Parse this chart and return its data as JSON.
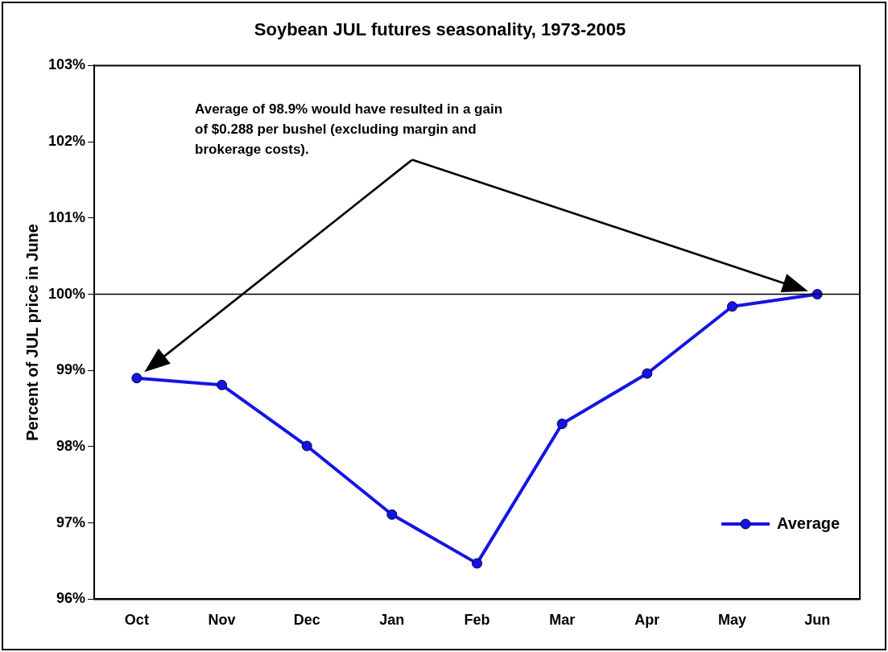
{
  "chart_data": {
    "type": "line",
    "title": "Soybean JUL futures seasonality, 1973-2005",
    "ylabel": "Percent of JUL price in June",
    "categories": [
      "Oct",
      "Nov",
      "Dec",
      "Jan",
      "Feb",
      "Mar",
      "Apr",
      "May",
      "Jun"
    ],
    "series": [
      {
        "name": "Average",
        "color": "#1414e6",
        "values": [
          98.9,
          98.81,
          98.01,
          97.11,
          96.47,
          98.3,
          98.96,
          99.84,
          100
        ]
      }
    ],
    "ylim": [
      96,
      103
    ],
    "yticks": [
      {
        "value": 96,
        "label": "96%"
      },
      {
        "value": 97,
        "label": "97%"
      },
      {
        "value": 98,
        "label": "98%"
      },
      {
        "value": 99,
        "label": "99%"
      },
      {
        "value": 100,
        "label": "100%"
      },
      {
        "value": 101,
        "label": "101%"
      },
      {
        "value": 102,
        "label": "102%"
      },
      {
        "value": 103,
        "label": "103%"
      }
    ],
    "ref_lines": [
      {
        "axis": "y",
        "value": 100,
        "color": "#000000"
      }
    ],
    "annotations": [
      "Average of 98.9% would have resulted in a gain of $0.288 per bushel (excluding margin and brokerage costs)."
    ],
    "legend": "bottom right",
    "marker": "circle",
    "line_style": "solid",
    "grid": false
  }
}
